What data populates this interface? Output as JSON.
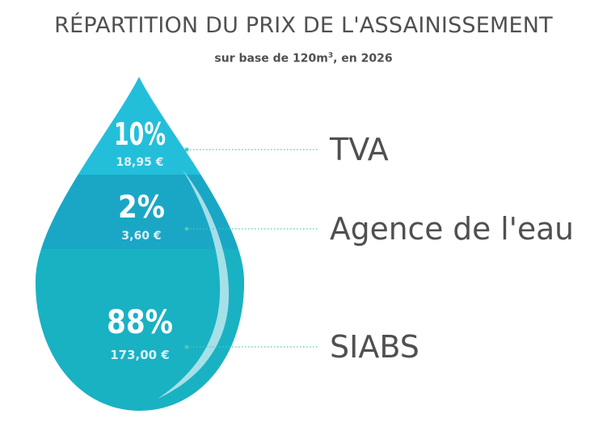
{
  "title": "RÉPARTITION DU PRIX DE L'ASSAINISSEMENT",
  "subtitle": {
    "prefix": "sur base de 120m",
    "superscript": "3",
    "suffix": ", en 2026"
  },
  "colors": {
    "tva": "#23bfda",
    "agence": "#1aa7c5",
    "siabs": "#19b2c3",
    "highlight": "#bfe7ef",
    "connector": "#4fc6bd",
    "label_text": "#505050",
    "percent_text": "#ffffff",
    "amount_text": "#d9f3f8"
  },
  "chart_data": {
    "type": "pie",
    "title": "RÉPARTITION DU PRIX DE L'ASSAINISSEMENT",
    "subtitle": "sur base de 120m3, en 2026",
    "categories": [
      "TVA",
      "Agence de l'eau",
      "SIABS"
    ],
    "values": [
      10,
      2,
      88
    ],
    "percent_labels": [
      "10%",
      "2%",
      "88%"
    ],
    "amounts": [
      18.95,
      3.6,
      173.0
    ],
    "amount_labels": [
      "18,95 €",
      "3,60 €",
      "173,00 €"
    ],
    "unit": "€"
  }
}
